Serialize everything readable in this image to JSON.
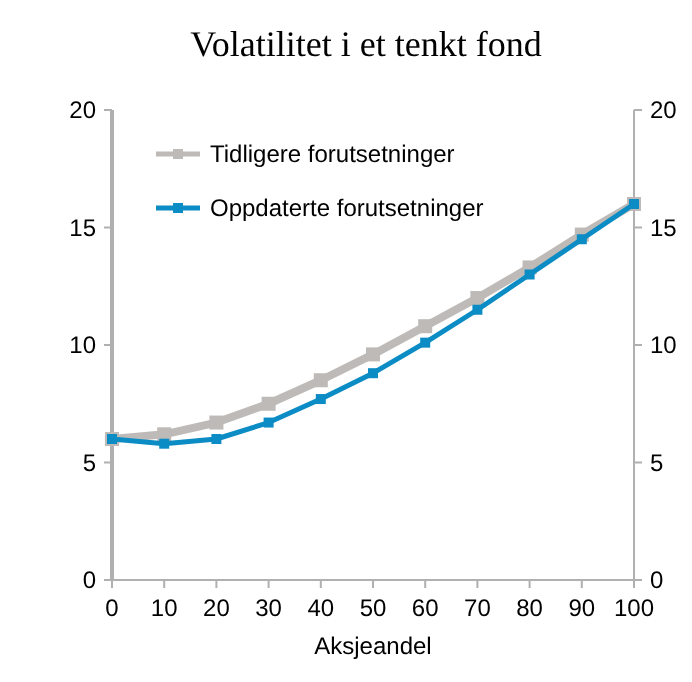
{
  "chart_data": {
    "type": "line",
    "title": "Volatilitet i et tenkt fond",
    "xlabel": "Aksjeandel",
    "x": [
      0,
      10,
      20,
      30,
      40,
      50,
      60,
      70,
      80,
      90,
      100
    ],
    "series": [
      {
        "name": "Tidligere forutsetninger",
        "color": "#bdbab7",
        "values": [
          6.0,
          6.2,
          6.7,
          7.5,
          8.5,
          9.6,
          10.8,
          12.0,
          13.3,
          14.7,
          16.0
        ]
      },
      {
        "name": "Oppdaterte forutsetninger",
        "color": "#0c8cc4",
        "values": [
          6.0,
          5.8,
          6.0,
          6.7,
          7.7,
          8.8,
          10.1,
          11.5,
          13.0,
          14.5,
          16.0
        ]
      }
    ],
    "xlim": [
      0,
      100
    ],
    "xticks": [
      0,
      10,
      20,
      30,
      40,
      50,
      60,
      70,
      80,
      90,
      100
    ],
    "ylim": [
      0,
      20
    ],
    "yticks": [
      0,
      5,
      10,
      15,
      20
    ],
    "y2lim": [
      0,
      20
    ],
    "y2ticks": [
      0,
      5,
      10,
      15,
      20
    ],
    "grid": false,
    "legend": "top left",
    "marker": "square",
    "line_style": "solid"
  }
}
